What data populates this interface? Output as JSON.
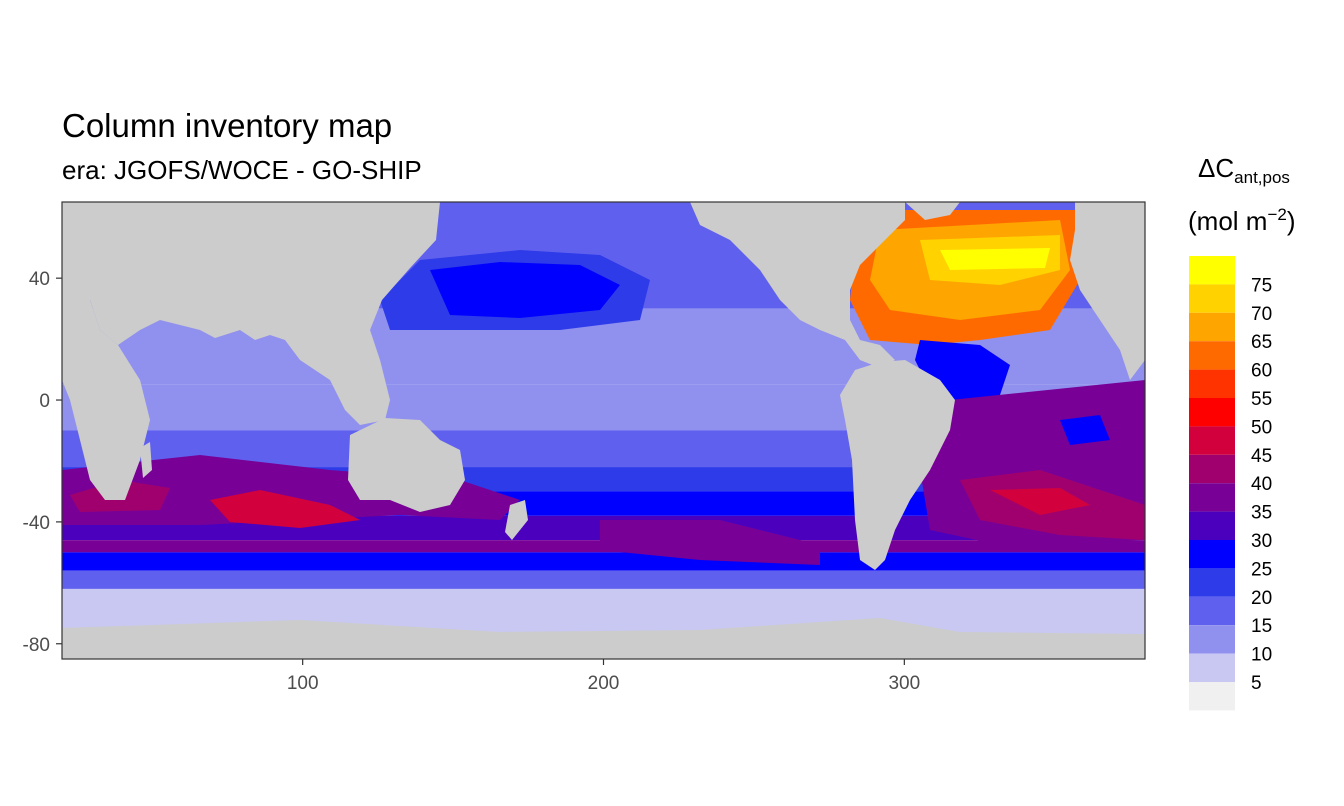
{
  "chart_data": {
    "type": "heatmap",
    "title": "Column inventory map",
    "subtitle": "era: JGOFS/WOCE - GO-SHIP",
    "xlabel": "",
    "ylabel": "",
    "xlim": [
      20,
      380
    ],
    "ylim": [
      -85,
      65
    ],
    "x_ticks": [
      100,
      200,
      300
    ],
    "y_ticks": [
      40,
      0,
      -40,
      -80
    ],
    "grid": false,
    "legend": {
      "position": "right",
      "title_main": "ΔC",
      "title_sub": "ant,pos",
      "title_unit_open": "(mol m",
      "title_unit_exp": "−2",
      "title_unit_close": ")",
      "breaks": [
        75,
        70,
        65,
        60,
        55,
        50,
        45,
        40,
        35,
        30,
        25,
        20,
        15,
        10,
        5
      ],
      "colors": [
        "#ffff00",
        "#ffd200",
        "#ffa500",
        "#ff6a00",
        "#ff3300",
        "#ff0000",
        "#d2003c",
        "#a0006e",
        "#780096",
        "#4b00be",
        "#0000ff",
        "#2e3be8",
        "#6060ee",
        "#9090ee",
        "#c8c8f2",
        "#f0f0f0"
      ]
    },
    "land_color": "#cccccc",
    "field_description": "Gridded column inventory values 0-80 mol m^-2 over global ocean; highest (>70) in North Atlantic, ~40-55 in Southern Hemisphere subtropical mode-water belt near -40 latitude, ~10-25 in Pacific and Southern Ocean south of -60."
  }
}
